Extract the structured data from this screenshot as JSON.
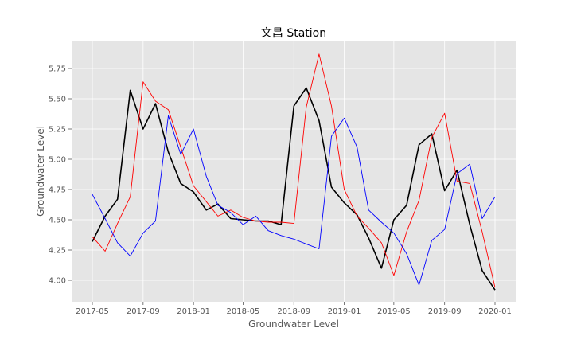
{
  "chart_data": {
    "type": "line",
    "title": "文昌 Station",
    "xlabel": "Groundwater Level",
    "ylabel": "Groundwater Level",
    "ylim": [
      3.83,
      5.94
    ],
    "grid": true,
    "legend": "none",
    "x": [
      "2017-05-01",
      "2017-06-01",
      "2017-07-01",
      "2017-08-01",
      "2017-09-01",
      "2017-10-01",
      "2017-11-01",
      "2017-12-01",
      "2018-01-01",
      "2018-02-01",
      "2018-03-01",
      "2018-04-01",
      "2018-05-01",
      "2018-06-01",
      "2018-07-01",
      "2018-08-01",
      "2018-09-01",
      "2018-10-01",
      "2018-11-01",
      "2018-12-01",
      "2019-01-01",
      "2019-02-01",
      "2019-03-01",
      "2019-04-01",
      "2019-05-01",
      "2019-06-01",
      "2019-07-01",
      "2019-08-01",
      "2019-09-01",
      "2019-10-01",
      "2019-11-01",
      "2019-12-01",
      "2020-01-01"
    ],
    "x_ticks": [
      "2017-05",
      "2017-09",
      "2018-01",
      "2018-05",
      "2018-09",
      "2019-01",
      "2019-05",
      "2019-09",
      "2020-01"
    ],
    "y_ticks": [
      "4.00",
      "4.25",
      "4.50",
      "4.75",
      "5.00",
      "5.25",
      "5.50",
      "5.75"
    ],
    "series": [
      {
        "color": "#000000",
        "values": [
          4.32,
          4.53,
          4.67,
          5.57,
          5.25,
          5.46,
          5.06,
          4.8,
          4.73,
          4.58,
          4.63,
          4.51,
          4.5,
          4.49,
          4.49,
          4.46,
          5.44,
          5.59,
          5.32,
          4.77,
          4.64,
          4.54,
          4.35,
          4.1,
          4.5,
          4.62,
          5.12,
          5.21,
          4.74,
          4.91,
          4.46,
          4.08,
          3.92
        ]
      },
      {
        "color": "#ff0000",
        "values": [
          4.36,
          4.24,
          4.47,
          4.69,
          5.64,
          5.48,
          5.41,
          5.1,
          4.78,
          4.65,
          4.53,
          4.58,
          4.52,
          4.49,
          4.48,
          4.48,
          4.47,
          5.43,
          5.87,
          5.44,
          4.75,
          4.53,
          4.43,
          4.31,
          4.04,
          4.4,
          4.66,
          5.18,
          5.38,
          4.82,
          4.8,
          4.4,
          3.94
        ]
      },
      {
        "color": "#0000ff",
        "values": [
          4.71,
          4.51,
          4.31,
          4.2,
          4.39,
          4.49,
          5.36,
          5.04,
          5.25,
          4.86,
          4.62,
          4.56,
          4.46,
          4.53,
          4.41,
          4.37,
          4.34,
          4.3,
          4.26,
          5.19,
          5.34,
          5.1,
          4.58,
          4.48,
          4.39,
          4.22,
          3.96,
          4.33,
          4.42,
          4.88,
          4.96,
          4.51,
          4.69
        ]
      }
    ]
  }
}
